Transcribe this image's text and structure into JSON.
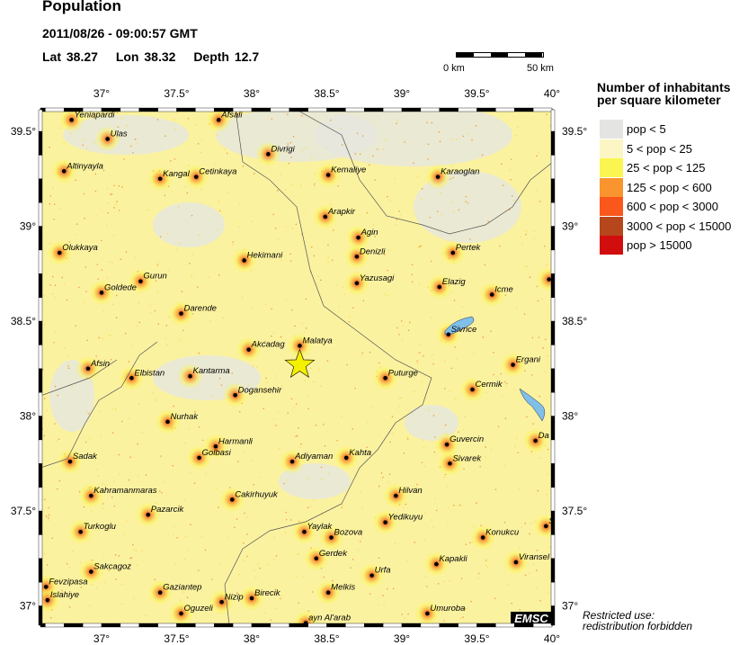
{
  "header": {
    "title": "Population",
    "datetime": "2011/08/26 - 09:00:57 GMT",
    "lat": "Lat 38.27",
    "lon": "Lon 38.32",
    "depth": "Depth  12.7"
  },
  "scale_bar": {
    "start": "0 km",
    "end": "50 km"
  },
  "legend": {
    "title_line1": "Number of inhabitants",
    "title_line2": "per square kilometer",
    "items": [
      {
        "label": "pop < 5",
        "color": "#e4e4e2"
      },
      {
        "label": "5 < pop < 25",
        "color": "#fbf6c4"
      },
      {
        "label": "25 < pop < 125",
        "color": "#fbf552"
      },
      {
        "label": "125 < pop < 600",
        "color": "#f9942f"
      },
      {
        "label": "600 < pop < 3000",
        "color": "#f9571b"
      },
      {
        "label": "3000 < pop < 15000",
        "color": "#b6461b"
      },
      {
        "label": "pop > 15000",
        "color": "#d10d0d"
      }
    ]
  },
  "map": {
    "lon_range": [
      36.59,
      40.0
    ],
    "lat_range": [
      36.9,
      39.61
    ],
    "lon_ticks": [
      "37°",
      "37.5°",
      "38°",
      "38.5°",
      "39°",
      "39.5°",
      "40°"
    ],
    "lat_ticks": [
      "39.5°",
      "39°",
      "38.5°",
      "38°",
      "37.5°",
      "37°"
    ],
    "epicenter": {
      "lat": 38.27,
      "lon": 38.32,
      "color": "#f5f000"
    },
    "cities": [
      [
        "Yeniapardi",
        36.8,
        39.56
      ],
      [
        "Ulas",
        37.04,
        39.46
      ],
      [
        "Afsali",
        37.78,
        39.56
      ],
      [
        "Divrigi",
        38.11,
        39.38
      ],
      [
        "Altinyayla",
        36.75,
        39.29
      ],
      [
        "Kangal",
        37.39,
        39.25
      ],
      [
        "Cetinkaya",
        37.63,
        39.26
      ],
      [
        "Kemaliye",
        38.51,
        39.27
      ],
      [
        "Karaoglan",
        39.24,
        39.26
      ],
      [
        "Arapkir",
        38.49,
        39.05
      ],
      [
        "Agin",
        38.71,
        38.94
      ],
      [
        "Olukkaya",
        36.72,
        38.86
      ],
      [
        "Hekimani",
        37.95,
        38.82
      ],
      [
        "Denizli",
        38.7,
        38.84
      ],
      [
        "Pertek",
        39.34,
        38.86
      ],
      [
        "Gurun",
        37.26,
        38.71
      ],
      [
        "Goldede",
        37.0,
        38.65
      ],
      [
        "Yazusagi",
        38.7,
        38.7
      ],
      [
        "Elazig",
        39.25,
        38.68
      ],
      [
        "Icme",
        39.6,
        38.64
      ],
      [
        "E",
        39.98,
        38.72
      ],
      [
        "Darende",
        37.53,
        38.54
      ],
      [
        "Sivrice",
        39.31,
        38.43
      ],
      [
        "Akcadag",
        37.98,
        38.35
      ],
      [
        "Malatya",
        38.32,
        38.37
      ],
      [
        "Afsin",
        36.91,
        38.25
      ],
      [
        "Elbistan",
        37.2,
        38.2
      ],
      [
        "Kantarma",
        37.59,
        38.21
      ],
      [
        "Puturge",
        38.89,
        38.2
      ],
      [
        "Ergani",
        39.74,
        38.27
      ],
      [
        "Cermik",
        39.47,
        38.14
      ],
      [
        "Dogansehir",
        37.89,
        38.11
      ],
      [
        "Nurhak",
        37.44,
        37.97
      ],
      [
        "Harmanli",
        37.76,
        37.84
      ],
      [
        "Golbasi",
        37.65,
        37.78
      ],
      [
        "Guvercin",
        39.3,
        37.85
      ],
      [
        "Da",
        39.89,
        37.87
      ],
      [
        "Sadak",
        36.79,
        37.76
      ],
      [
        "Adiyaman",
        38.27,
        37.76
      ],
      [
        "Kahta",
        38.63,
        37.78
      ],
      [
        "Sivarek",
        39.32,
        37.75
      ],
      [
        "Kahramanmaras",
        36.93,
        37.58
      ],
      [
        "Cakirhuyuk",
        37.87,
        37.56
      ],
      [
        "Hilvan",
        38.96,
        37.58
      ],
      [
        "Pazarcik",
        37.31,
        37.48
      ],
      [
        "Yedikuyu",
        38.89,
        37.44
      ],
      [
        "Turkoglu",
        36.86,
        37.39
      ],
      [
        "Yaylak",
        38.35,
        37.39
      ],
      [
        "Bozova",
        38.53,
        37.36
      ],
      [
        "Konukcu",
        39.54,
        37.36
      ],
      [
        "S",
        39.96,
        37.42
      ],
      [
        "Gerdek",
        38.43,
        37.25
      ],
      [
        "Kapakli",
        39.23,
        37.22
      ],
      [
        "Urfa",
        38.8,
        37.16
      ],
      [
        "Viransel",
        39.76,
        37.23
      ],
      [
        "Sakcagoz",
        36.93,
        37.18
      ],
      [
        "Fevzipasa",
        36.63,
        37.1
      ],
      [
        "Islahiye",
        36.64,
        37.03
      ],
      [
        "Gaziantep",
        37.39,
        37.07
      ],
      [
        "Melkis",
        38.51,
        37.07
      ],
      [
        "Nizip",
        37.8,
        37.02
      ],
      [
        "Birecik",
        38.0,
        37.04
      ],
      [
        "Oguzeli",
        37.53,
        36.96
      ],
      [
        "Umuroba",
        39.17,
        36.96
      ],
      [
        "ayn Al'arab",
        38.36,
        36.91
      ]
    ],
    "lake_color": "#7fbfe8",
    "logo": "EMSC"
  },
  "footer": {
    "restrict_line1": "Restricted use:",
    "restrict_line2": "redistribution forbidden"
  }
}
